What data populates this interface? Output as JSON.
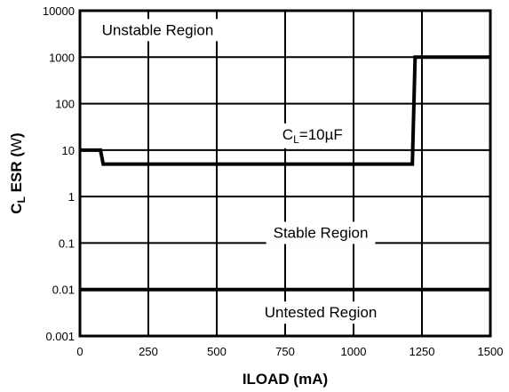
{
  "chart_data": {
    "type": "line",
    "title": "",
    "xlabel": "ILOAD (mA)",
    "ylabel": {
      "prefix": "C",
      "subscript": "L",
      "main": " ESR (",
      "unit": "W",
      "suffix": ")"
    },
    "xlim": [
      0,
      1500
    ],
    "ylim": [
      0.001,
      10000
    ],
    "yscale": "log",
    "grid": true,
    "x_ticks": [
      0,
      250,
      500,
      750,
      1000,
      1250,
      1500
    ],
    "x_tick_labels": [
      "0",
      "250",
      "500",
      "750",
      "1000",
      "1250",
      "1500"
    ],
    "y_ticks": [
      0.001,
      0.01,
      0.1,
      1,
      10,
      100,
      1000,
      10000
    ],
    "y_tick_labels": [
      "0.001",
      "0.01",
      "0.1",
      "1",
      "10",
      "100",
      "1000",
      "10000"
    ],
    "series": [
      {
        "values": [
          {
            "x": 0,
            "y": 10
          },
          {
            "x": 75,
            "y": 10
          },
          {
            "x": 85,
            "y": 5
          },
          {
            "x": 1215,
            "y": 5
          },
          {
            "x": 1225,
            "y": 1000
          },
          {
            "x": 1500,
            "y": 1000
          }
        ]
      },
      {
        "values": [
          {
            "x": 0,
            "y": 0.01
          },
          {
            "x": 1500,
            "y": 0.01
          }
        ]
      }
    ],
    "annotations": {
      "unstable": "Unstable Region",
      "stable": "Stable Region",
      "untested": "Untested Region",
      "cl": {
        "prefix": "C",
        "subscript": "L",
        "suffix": "=10µF"
      }
    },
    "annotation_placement": {
      "unstable": {
        "x": 80,
        "y": 3000
      },
      "stable": {
        "x": 880,
        "y": 0.13
      },
      "untested": {
        "x": 880,
        "y": 0.0025
      },
      "cl": {
        "x": 850,
        "y": 17
      }
    }
  }
}
